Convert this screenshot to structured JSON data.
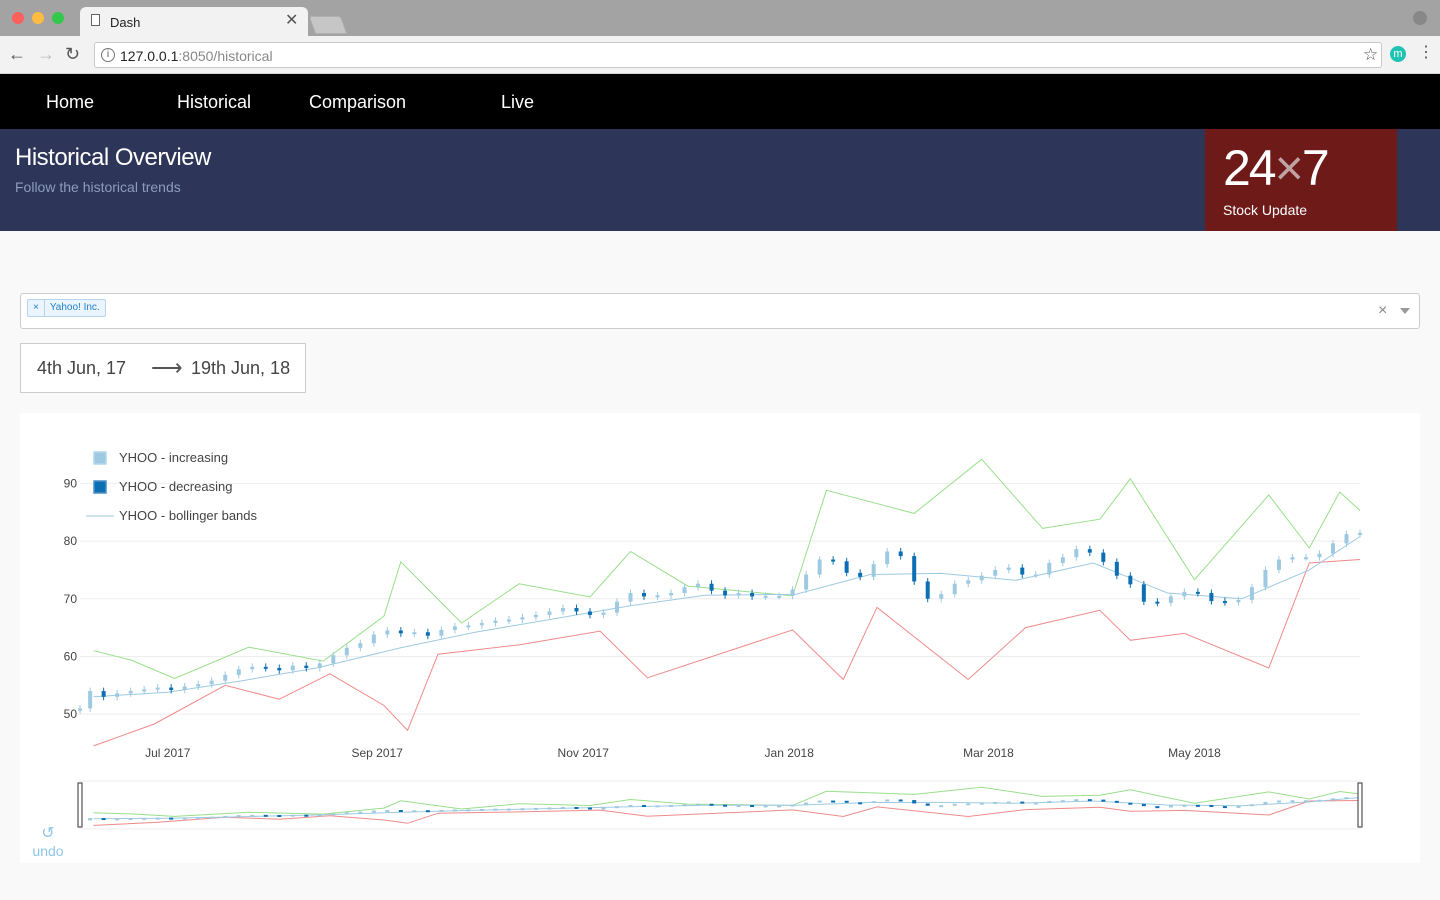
{
  "browser": {
    "tab_title": "Dash",
    "url_host": "127.0.0.1",
    "url_rest": ":8050/historical",
    "extension_letter": "m"
  },
  "nav": {
    "items": [
      {
        "label": "Home"
      },
      {
        "label": "Historical"
      },
      {
        "label": "Comparison"
      },
      {
        "label": "Live"
      }
    ]
  },
  "banner": {
    "title": "Historical Overview",
    "subtitle": "Follow the historical trends",
    "logo_left": "24",
    "logo_x": "×",
    "logo_right": "7",
    "logo_sub": "Stock Update"
  },
  "dropdown": {
    "selected": "Yahoo! Inc.",
    "chip_remove": "×",
    "clear": "×"
  },
  "date_range": {
    "start": "4th Jun, 17",
    "arrow": "⟶",
    "end": "19th Jun, 18"
  },
  "undo": {
    "label": "undo",
    "icon": "↺"
  },
  "colors": {
    "increasing": "#9ecae1",
    "decreasing": "#0c6fb3",
    "bollinger_mid": "#9ecae1",
    "bollinger_upper": "#98df8a",
    "bollinger_lower": "#ef8a8a",
    "nav_bg": "#000000",
    "banner_bg": "#2d3659",
    "logo_bg": "#6e1a19"
  },
  "chart_data": {
    "type": "candlestick",
    "title": "",
    "xlabel": "",
    "ylabel": "",
    "x_ticks": [
      "Jul 2017",
      "Sep 2017",
      "Nov 2017",
      "Jan 2018",
      "Mar 2018",
      "May 2018"
    ],
    "y_ticks": [
      50,
      60,
      70,
      80,
      90
    ],
    "xlim": [
      "2017-06-05",
      "2018-06-19"
    ],
    "ylim": [
      45,
      97
    ],
    "legend": [
      "YHOO - increasing",
      "YHOO - decreasing",
      "YHOO - bollinger bands"
    ],
    "legend_position": "top-left",
    "grid": true,
    "range_slider": true,
    "close": [
      [
        "2017-06-05",
        51.0
      ],
      [
        "2017-06-08",
        54.0
      ],
      [
        "2017-06-12",
        53.0
      ],
      [
        "2017-06-16",
        53.6
      ],
      [
        "2017-06-20",
        54.0
      ],
      [
        "2017-06-24",
        54.3
      ],
      [
        "2017-06-28",
        54.6
      ],
      [
        "2017-07-02",
        54.2
      ],
      [
        "2017-07-06",
        54.8
      ],
      [
        "2017-07-10",
        55.2
      ],
      [
        "2017-07-14",
        55.8
      ],
      [
        "2017-07-18",
        56.8
      ],
      [
        "2017-07-22",
        57.8
      ],
      [
        "2017-07-26",
        58.2
      ],
      [
        "2017-07-30",
        58.0
      ],
      [
        "2017-08-03",
        57.6
      ],
      [
        "2017-08-07",
        58.4
      ],
      [
        "2017-08-11",
        58.0
      ],
      [
        "2017-08-15",
        58.8
      ],
      [
        "2017-08-19",
        60.2
      ],
      [
        "2017-08-23",
        61.5
      ],
      [
        "2017-08-27",
        62.3
      ],
      [
        "2017-08-31",
        63.8
      ],
      [
        "2017-09-04",
        64.5
      ],
      [
        "2017-09-08",
        64.0
      ],
      [
        "2017-09-12",
        64.2
      ],
      [
        "2017-09-16",
        63.6
      ],
      [
        "2017-09-20",
        64.6
      ],
      [
        "2017-09-24",
        65.2
      ],
      [
        "2017-09-28",
        65.4
      ],
      [
        "2017-10-02",
        65.8
      ],
      [
        "2017-10-06",
        66.2
      ],
      [
        "2017-10-10",
        66.4
      ],
      [
        "2017-10-14",
        66.8
      ],
      [
        "2017-10-18",
        67.2
      ],
      [
        "2017-10-22",
        67.8
      ],
      [
        "2017-10-26",
        68.4
      ],
      [
        "2017-10-30",
        67.8
      ],
      [
        "2017-11-03",
        67.2
      ],
      [
        "2017-11-07",
        67.6
      ],
      [
        "2017-11-11",
        69.5
      ],
      [
        "2017-11-15",
        71.0
      ],
      [
        "2017-11-19",
        70.4
      ],
      [
        "2017-11-23",
        70.6
      ],
      [
        "2017-11-27",
        71.0
      ],
      [
        "2017-12-01",
        72.0
      ],
      [
        "2017-12-05",
        72.6
      ],
      [
        "2017-12-09",
        71.4
      ],
      [
        "2017-12-13",
        70.6
      ],
      [
        "2017-12-17",
        71.0
      ],
      [
        "2017-12-21",
        70.4
      ],
      [
        "2017-12-25",
        70.5
      ],
      [
        "2017-12-29",
        70.5
      ],
      [
        "2018-01-02",
        71.6
      ],
      [
        "2018-01-06",
        74.2
      ],
      [
        "2018-01-10",
        76.8
      ],
      [
        "2018-01-14",
        76.5
      ],
      [
        "2018-01-18",
        74.5
      ],
      [
        "2018-01-22",
        73.8
      ],
      [
        "2018-01-26",
        76.0
      ],
      [
        "2018-01-30",
        78.2
      ],
      [
        "2018-02-03",
        77.4
      ],
      [
        "2018-02-07",
        73.0
      ],
      [
        "2018-02-11",
        70.0
      ],
      [
        "2018-02-15",
        70.8
      ],
      [
        "2018-02-19",
        72.6
      ],
      [
        "2018-02-23",
        73.2
      ],
      [
        "2018-02-27",
        74.0
      ],
      [
        "2018-03-03",
        75.0
      ],
      [
        "2018-03-07",
        75.4
      ],
      [
        "2018-03-11",
        74.2
      ],
      [
        "2018-03-15",
        74.2
      ],
      [
        "2018-03-19",
        76.2
      ],
      [
        "2018-03-23",
        77.2
      ],
      [
        "2018-03-27",
        78.6
      ],
      [
        "2018-03-31",
        78.0
      ],
      [
        "2018-04-04",
        76.4
      ],
      [
        "2018-04-08",
        74.0
      ],
      [
        "2018-04-12",
        72.5
      ],
      [
        "2018-04-16",
        69.5
      ],
      [
        "2018-04-20",
        69.3
      ],
      [
        "2018-04-24",
        70.4
      ],
      [
        "2018-04-28",
        71.2
      ],
      [
        "2018-05-02",
        71.0
      ],
      [
        "2018-05-06",
        69.6
      ],
      [
        "2018-05-10",
        69.4
      ],
      [
        "2018-05-14",
        69.8
      ],
      [
        "2018-05-18",
        72.0
      ],
      [
        "2018-05-22",
        75.0
      ],
      [
        "2018-05-26",
        76.8
      ],
      [
        "2018-05-30",
        77.2
      ],
      [
        "2018-06-03",
        77.2
      ],
      [
        "2018-06-07",
        77.8
      ],
      [
        "2018-06-11",
        79.6
      ],
      [
        "2018-06-15",
        81.2
      ],
      [
        "2018-06-19",
        81.4
      ]
    ],
    "bollinger_middle": [
      [
        "2017-06-09",
        53.0
      ],
      [
        "2017-07-01",
        53.8
      ],
      [
        "2017-07-23",
        55.8
      ],
      [
        "2017-08-14",
        58.0
      ],
      [
        "2017-09-08",
        61.5
      ],
      [
        "2017-09-30",
        64.2
      ],
      [
        "2017-10-23",
        66.5
      ],
      [
        "2017-11-15",
        68.8
      ],
      [
        "2017-12-07",
        70.6
      ],
      [
        "2018-01-03",
        70.8
      ],
      [
        "2018-01-25",
        74.2
      ],
      [
        "2018-02-15",
        74.4
      ],
      [
        "2018-03-09",
        73.2
      ],
      [
        "2018-04-01",
        76.2
      ],
      [
        "2018-04-23",
        71.0
      ],
      [
        "2018-05-15",
        70.0
      ],
      [
        "2018-06-04",
        75.0
      ],
      [
        "2018-06-19",
        80.8
      ]
    ],
    "bollinger_upper": [
      [
        "2017-06-09",
        61.0
      ],
      [
        "2017-06-20",
        59.4
      ],
      [
        "2017-07-03",
        56.2
      ],
      [
        "2017-07-25",
        61.6
      ],
      [
        "2017-08-16",
        59.2
      ],
      [
        "2017-09-03",
        67.0
      ],
      [
        "2017-09-08",
        76.4
      ],
      [
        "2017-09-26",
        65.8
      ],
      [
        "2017-10-13",
        72.6
      ],
      [
        "2017-11-03",
        70.3
      ],
      [
        "2017-11-15",
        78.2
      ],
      [
        "2017-12-02",
        72.2
      ],
      [
        "2018-01-02",
        70.5
      ],
      [
        "2018-01-12",
        88.8
      ],
      [
        "2018-02-07",
        84.8
      ],
      [
        "2018-02-27",
        94.2
      ],
      [
        "2018-03-17",
        82.2
      ],
      [
        "2018-04-03",
        83.8
      ],
      [
        "2018-04-12",
        90.8
      ],
      [
        "2018-05-01",
        73.3
      ],
      [
        "2018-05-23",
        88.0
      ],
      [
        "2018-06-04",
        78.8
      ],
      [
        "2018-06-13",
        88.5
      ],
      [
        "2018-06-19",
        85.3
      ]
    ],
    "bollinger_lower": [
      [
        "2017-06-09",
        44.5
      ],
      [
        "2017-06-27",
        48.3
      ],
      [
        "2017-07-18",
        55.0
      ],
      [
        "2017-08-03",
        52.6
      ],
      [
        "2017-08-18",
        57.0
      ],
      [
        "2017-09-03",
        51.5
      ],
      [
        "2017-09-10",
        47.2
      ],
      [
        "2017-09-19",
        60.4
      ],
      [
        "2017-10-13",
        62.0
      ],
      [
        "2017-11-06",
        64.4
      ],
      [
        "2017-11-20",
        56.3
      ],
      [
        "2018-01-02",
        64.6
      ],
      [
        "2018-01-17",
        56.0
      ],
      [
        "2018-01-27",
        68.5
      ],
      [
        "2018-02-23",
        56.0
      ],
      [
        "2018-03-12",
        65.0
      ],
      [
        "2018-04-03",
        68.0
      ],
      [
        "2018-04-12",
        62.8
      ],
      [
        "2018-04-28",
        64.0
      ],
      [
        "2018-05-23",
        58.0
      ],
      [
        "2018-06-04",
        76.2
      ],
      [
        "2018-06-19",
        76.8
      ]
    ]
  }
}
